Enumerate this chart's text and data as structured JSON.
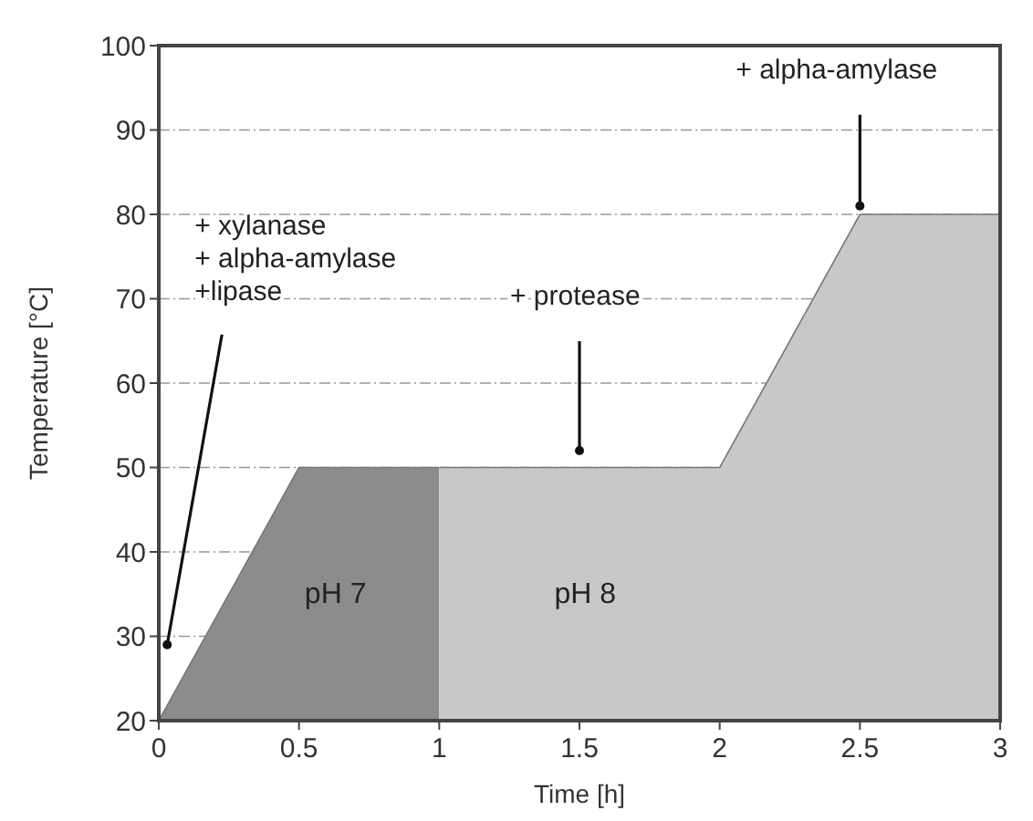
{
  "chart_data": {
    "type": "area",
    "xlabel": "Time [h]",
    "ylabel": "Temperature [°C]",
    "series": [
      {
        "name": "pH 7",
        "color": "#8c8c8c",
        "x": [
          0,
          0.5,
          1
        ],
        "values": [
          20,
          50,
          50
        ]
      },
      {
        "name": "pH 8",
        "color": "#c8c8c8",
        "x": [
          1,
          2,
          2.5,
          3
        ],
        "values": [
          50,
          50,
          80,
          80
        ]
      }
    ],
    "xlim": [
      0,
      3
    ],
    "xticks": [
      0,
      0.5,
      1,
      1.5,
      2,
      2.5,
      3
    ],
    "ylim": [
      20,
      100
    ],
    "yticks": [
      20,
      30,
      40,
      50,
      60,
      70,
      80,
      90,
      100
    ],
    "grid": "y",
    "annotations": [
      {
        "text": "+ xylanase\n+ alpha-amylase\n+lipase",
        "x": 0.03,
        "y": 29
      },
      {
        "text": "+ protease",
        "x": 1.5,
        "y": 52
      },
      {
        "text": "+ alpha-amylase",
        "x": 2.5,
        "y": 81
      }
    ]
  }
}
